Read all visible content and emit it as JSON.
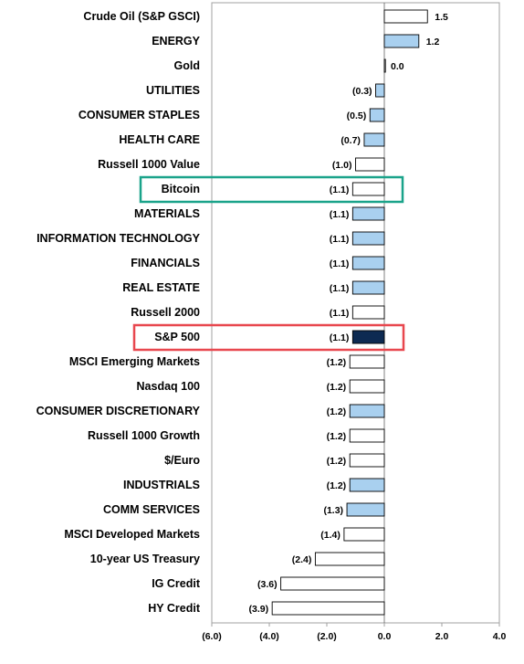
{
  "chart_data": {
    "type": "bar",
    "orientation": "horizontal",
    "title": "",
    "xlabel": "",
    "ylabel": "",
    "xlim": [
      -6.0,
      4.0
    ],
    "x_ticks": [
      -6.0,
      -4.0,
      -2.0,
      0.0,
      2.0,
      4.0
    ],
    "x_tick_labels": [
      "(6.0)",
      "(4.0)",
      "(2.0)",
      "0.0",
      "2.0",
      "4.0"
    ],
    "grid": false,
    "legend": "none",
    "categories": [
      "Crude Oil (S&P GSCI)",
      "ENERGY",
      "Gold",
      "UTILITIES",
      "CONSUMER STAPLES",
      "HEALTH CARE",
      "Russell 1000 Value",
      "Bitcoin",
      "MATERIALS",
      "INFORMATION TECHNOLOGY",
      "FINANCIALS",
      "REAL ESTATE",
      "Russell 2000",
      "S&P 500",
      "MSCI Emerging Markets",
      "Nasdaq 100",
      "CONSUMER DISCRETIONARY",
      "Russell 1000 Growth",
      "$/Euro",
      "INDUSTRIALS",
      "COMM SERVICES",
      "MSCI Developed Markets",
      "10-year US Treasury",
      "IG Credit",
      "HY Credit"
    ],
    "values": [
      1.5,
      1.2,
      0.0,
      -0.3,
      -0.5,
      -0.7,
      -1.0,
      -1.1,
      -1.1,
      -1.1,
      -1.1,
      -1.1,
      -1.1,
      -1.1,
      -1.2,
      -1.2,
      -1.2,
      -1.2,
      -1.2,
      -1.2,
      -1.3,
      -1.4,
      -2.4,
      -3.6,
      -3.9
    ],
    "value_labels": [
      "1.5",
      "1.2",
      "0.0",
      "(0.3)",
      "(0.5)",
      "(0.7)",
      "(1.0)",
      "(1.1)",
      "(1.1)",
      "(1.1)",
      "(1.1)",
      "(1.1)",
      "(1.1)",
      "(1.1)",
      "(1.2)",
      "(1.2)",
      "(1.2)",
      "(1.2)",
      "(1.2)",
      "(1.2)",
      "(1.3)",
      "(1.4)",
      "(2.4)",
      "(3.6)",
      "(3.9)"
    ],
    "bar_style": [
      "white",
      "sector",
      "white",
      "sector",
      "sector",
      "sector",
      "white",
      "white",
      "sector",
      "sector",
      "sector",
      "sector",
      "white",
      "highlight",
      "white",
      "white",
      "sector",
      "white",
      "white",
      "sector",
      "sector",
      "white",
      "white",
      "white",
      "white"
    ],
    "highlighted": [
      {
        "category": "Bitcoin",
        "color": "#1aa38a"
      },
      {
        "category": "S&P 500",
        "color": "#e8474e"
      }
    ],
    "colors": {
      "sector": "#a9d0ef",
      "white": "#ffffff",
      "highlight": "#0d2a52",
      "bar_border": "#000000",
      "frame": "#a0a0a0"
    }
  }
}
